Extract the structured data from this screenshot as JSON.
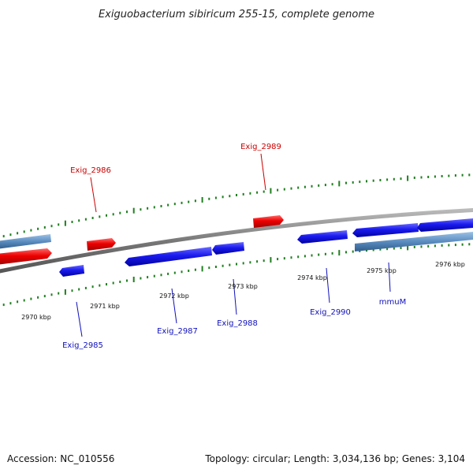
{
  "title": "Exiguobacterium sibiricum 255-15, complete genome",
  "footer": {
    "accession": "Accession: NC_010556",
    "summary": "Topology: circular; Length: 3,034,136 bp; Genes: 3,104"
  },
  "colors": {
    "forward_gene": "#e00000",
    "reverse_gene": "#1010e0",
    "other_feature": "#4f7fb0",
    "backbone": "#888888",
    "ticks": "#1f7f1f",
    "forward_label": "#cc0000",
    "reverse_label": "#1010bb"
  },
  "ticks": [
    {
      "label": "2970 kbp"
    },
    {
      "label": "2971 kbp"
    },
    {
      "label": "2972 kbp"
    },
    {
      "label": "2973 kbp"
    },
    {
      "label": "2974 kbp"
    },
    {
      "label": "2975 kbp"
    },
    {
      "label": "2976 kbp"
    }
  ],
  "gene_labels": [
    {
      "text": "Exig_2986",
      "strand": "forward"
    },
    {
      "text": "Exig_2989",
      "strand": "forward"
    },
    {
      "text": "Exig_2985",
      "strand": "reverse"
    },
    {
      "text": "Exig_2987",
      "strand": "reverse"
    },
    {
      "text": "Exig_2988",
      "strand": "reverse"
    },
    {
      "text": "Exig_2990",
      "strand": "reverse"
    },
    {
      "text": "mmuM",
      "strand": "reverse"
    }
  ]
}
